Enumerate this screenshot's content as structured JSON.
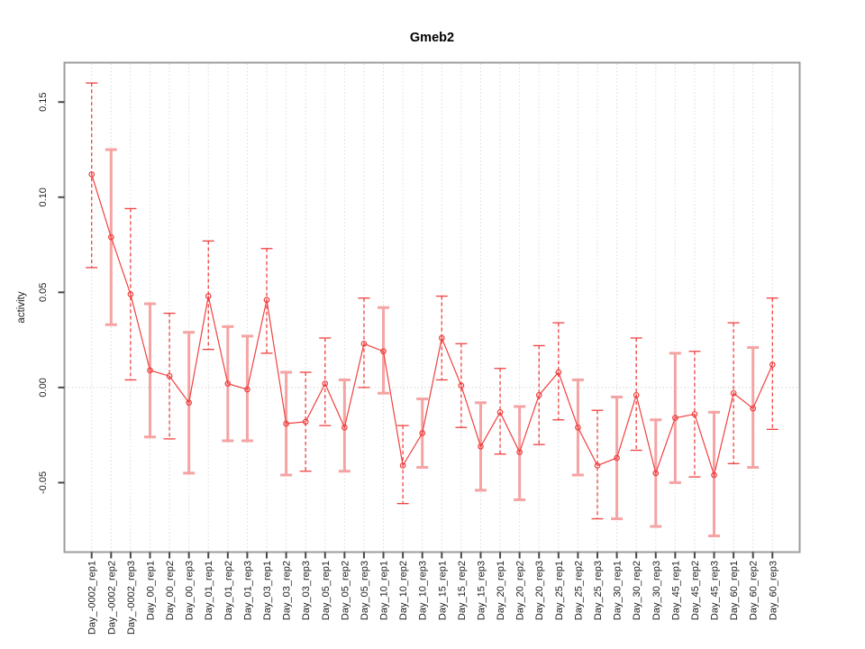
{
  "title": "Gmeb2",
  "colors": {
    "series_red": "#f04141",
    "error_bar_pink": "#f5a3a3",
    "grid": "#dcdcdc",
    "zero_line": "#d2d2d2",
    "plot_border": "#9c9c9c",
    "tick": "#474747",
    "tick_text": "#1c1c1c",
    "title_text": "#000000",
    "background": "#ffffff"
  },
  "chart_data": {
    "type": "line",
    "title": "Gmeb2",
    "xlabel": "",
    "ylabel": "activity",
    "legend_position": "none",
    "marker": "open-circle",
    "grid": {
      "vertical_dotted_per_category": true,
      "horizontal_dotted_at_zero": true
    },
    "xlim": [
      -0.4,
      37.4
    ],
    "ylim": [
      -0.0865,
      0.1707
    ],
    "yticks": [
      -0.05,
      0.0,
      0.05,
      0.1,
      0.15
    ],
    "ytick_labels": [
      "-0.05",
      "0.00",
      "0.05",
      "0.10",
      "0.15"
    ],
    "categories": [
      "Day_-0002_rep1",
      "Day_-0002_rep2",
      "Day_-0002_rep3",
      "Day_00_rep1",
      "Day_00_rep2",
      "Day_00_rep3",
      "Day_01_rep1",
      "Day_01_rep2",
      "Day_01_rep3",
      "Day_03_rep1",
      "Day_03_rep2",
      "Day_03_rep3",
      "Day_05_rep1",
      "Day_05_rep2",
      "Day_05_rep3",
      "Day_10_rep1",
      "Day_10_rep2",
      "Day_10_rep3",
      "Day_15_rep1",
      "Day_15_rep2",
      "Day_15_rep3",
      "Day_20_rep1",
      "Day_20_rep2",
      "Day_20_rep3",
      "Day_25_rep1",
      "Day_25_rep2",
      "Day_25_rep3",
      "Day_30_rep1",
      "Day_30_rep2",
      "Day_30_rep3",
      "Day_45_rep1",
      "Day_45_rep2",
      "Day_45_rep3",
      "Day_60_rep1",
      "Day_60_rep2",
      "Day_60_rep3"
    ],
    "series": [
      {
        "name": "activity",
        "values": [
          0.112,
          0.079,
          0.049,
          0.009,
          0.006,
          -0.008,
          0.048,
          0.002,
          -0.001,
          0.046,
          -0.019,
          -0.018,
          0.002,
          -0.021,
          0.023,
          0.019,
          -0.041,
          -0.024,
          0.026,
          0.001,
          -0.031,
          -0.013,
          -0.034,
          -0.004,
          0.008,
          -0.021,
          -0.041,
          -0.037,
          -0.004,
          -0.045,
          -0.016,
          -0.014,
          -0.046,
          -0.003,
          -0.011,
          0.012
        ]
      }
    ],
    "error_bars": {
      "low": [
        0.063,
        0.033,
        0.004,
        -0.026,
        -0.027,
        -0.045,
        0.02,
        -0.028,
        -0.028,
        0.018,
        -0.046,
        -0.044,
        -0.02,
        -0.044,
        0.0,
        -0.003,
        -0.061,
        -0.042,
        0.004,
        -0.021,
        -0.054,
        -0.035,
        -0.059,
        -0.03,
        -0.017,
        -0.046,
        -0.069,
        -0.069,
        -0.033,
        -0.073,
        -0.05,
        -0.047,
        -0.078,
        -0.04,
        -0.042,
        -0.022
      ],
      "high": [
        0.16,
        0.125,
        0.094,
        0.044,
        0.039,
        0.029,
        0.077,
        0.032,
        0.027,
        0.073,
        0.008,
        0.008,
        0.026,
        0.004,
        0.047,
        0.042,
        -0.02,
        -0.006,
        0.048,
        0.023,
        -0.008,
        0.01,
        -0.01,
        0.022,
        0.034,
        0.004,
        -0.012,
        -0.005,
        0.026,
        -0.017,
        0.018,
        0.019,
        -0.013,
        0.034,
        0.021,
        0.047
      ],
      "styles": [
        "dashed",
        "solid",
        "dashed",
        "solid",
        "dashed",
        "solid",
        "dashed",
        "solid",
        "solid",
        "dashed",
        "solid",
        "dashed",
        "dashed",
        "solid",
        "dashed",
        "solid",
        "dashed",
        "solid",
        "dashed",
        "dashed",
        "solid",
        "dashed",
        "solid",
        "dashed",
        "dashed",
        "solid",
        "dashed",
        "solid",
        "dashed",
        "solid",
        "solid",
        "dashed",
        "solid",
        "dashed",
        "solid",
        "dashed"
      ]
    }
  }
}
